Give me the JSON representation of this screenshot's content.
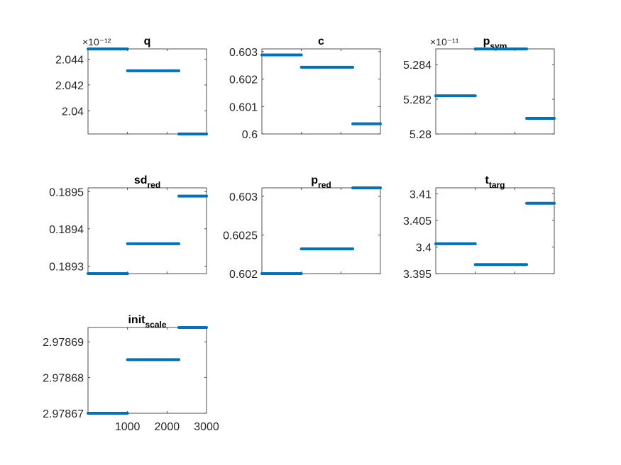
{
  "chart_data": [
    {
      "type": "line",
      "title": {
        "main": "q",
        "sub": ""
      },
      "exponent": "×10⁻¹²",
      "ylim": [
        2.0382,
        2.0448
      ],
      "yticks": [
        2.04,
        2.042,
        2.044
      ],
      "ytick_labels": [
        "2.04",
        "2.042",
        "2.044"
      ],
      "segments": [
        {
          "x": [
            0,
            1000
          ],
          "y": 2.0448
        },
        {
          "x": [
            1000,
            2300
          ],
          "y": 2.0431
        },
        {
          "x": [
            2300,
            3000
          ],
          "y": 2.0382
        }
      ]
    },
    {
      "type": "line",
      "title": {
        "main": "c",
        "sub": ""
      },
      "exponent": "",
      "ylim": [
        0.6,
        0.6031
      ],
      "yticks": [
        0.6,
        0.601,
        0.602,
        0.603
      ],
      "ytick_labels": [
        "0.6",
        "0.601",
        "0.602",
        "0.603"
      ],
      "segments": [
        {
          "x": [
            0,
            1000
          ],
          "y": 0.60288
        },
        {
          "x": [
            1000,
            2300
          ],
          "y": 0.60243
        },
        {
          "x": [
            2300,
            3000
          ],
          "y": 0.60037
        }
      ]
    },
    {
      "type": "line",
      "title": {
        "main": "p",
        "sub": "sym"
      },
      "exponent": "×10⁻¹¹",
      "ylim": [
        5.28,
        5.2849
      ],
      "yticks": [
        5.28,
        5.282,
        5.284
      ],
      "ytick_labels": [
        "5.28",
        "5.282",
        "5.284"
      ],
      "segments": [
        {
          "x": [
            0,
            1000
          ],
          "y": 5.2822
        },
        {
          "x": [
            1000,
            2300
          ],
          "y": 5.2849
        },
        {
          "x": [
            2300,
            3000
          ],
          "y": 5.2809
        }
      ]
    },
    {
      "type": "line",
      "title": {
        "main": "sd",
        "sub": "red"
      },
      "exponent": "",
      "ylim": [
        0.18928,
        0.18951
      ],
      "yticks": [
        0.1893,
        0.1894,
        0.1895
      ],
      "ytick_labels": [
        "0.1893",
        "0.1894",
        "0.1895"
      ],
      "segments": [
        {
          "x": [
            0,
            1000
          ],
          "y": 0.18928
        },
        {
          "x": [
            1000,
            2300
          ],
          "y": 0.18936
        },
        {
          "x": [
            2300,
            3000
          ],
          "y": 0.189488
        }
      ]
    },
    {
      "type": "line",
      "title": {
        "main": "p",
        "sub": "red"
      },
      "exponent": "",
      "ylim": [
        0.602,
        0.60311
      ],
      "yticks": [
        0.602,
        0.6025,
        0.603
      ],
      "ytick_labels": [
        "0.602",
        "0.6025",
        "0.603"
      ],
      "segments": [
        {
          "x": [
            0,
            1000
          ],
          "y": 0.602
        },
        {
          "x": [
            1000,
            2300
          ],
          "y": 0.60232
        },
        {
          "x": [
            2300,
            3000
          ],
          "y": 0.60311
        }
      ]
    },
    {
      "type": "line",
      "title": {
        "main": "t",
        "sub": "targ"
      },
      "exponent": "",
      "ylim": [
        3.395,
        3.4111
      ],
      "yticks": [
        3.395,
        3.4,
        3.405,
        3.41
      ],
      "ytick_labels": [
        "3.395",
        "3.4",
        "3.405",
        "3.41"
      ],
      "segments": [
        {
          "x": [
            0,
            1000
          ],
          "y": 3.4006
        },
        {
          "x": [
            1000,
            2300
          ],
          "y": 3.3967
        },
        {
          "x": [
            2300,
            3000
          ],
          "y": 3.4082
        }
      ]
    },
    {
      "type": "line",
      "title": {
        "main": "init",
        "sub": "scale"
      },
      "exponent": "",
      "ylim": [
        2.97867,
        2.978694
      ],
      "yticks": [
        2.97867,
        2.97868,
        2.97869
      ],
      "ytick_labels": [
        "2.97867",
        "2.97868",
        "2.97869"
      ],
      "xticks": [
        1000,
        2000,
        3000
      ],
      "xtick_labels": [
        "1000",
        "2000",
        "3000"
      ],
      "segments": [
        {
          "x": [
            0,
            1000
          ],
          "y": 2.97867
        },
        {
          "x": [
            1000,
            2300
          ],
          "y": 2.978685
        },
        {
          "x": [
            2300,
            3000
          ],
          "y": 2.978694
        }
      ]
    }
  ],
  "shared": {
    "xlim": [
      0,
      3000
    ],
    "line_color": "#0072BD",
    "axis_color": "#262626"
  }
}
